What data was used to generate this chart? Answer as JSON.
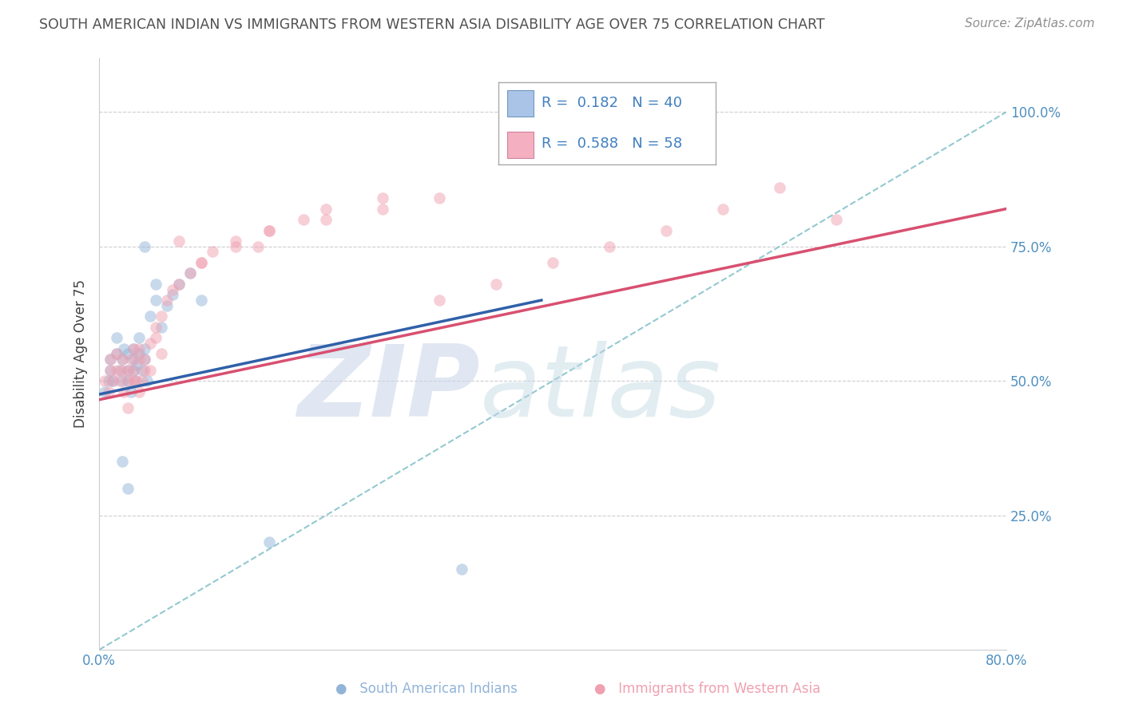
{
  "title": "SOUTH AMERICAN INDIAN VS IMMIGRANTS FROM WESTERN ASIA DISABILITY AGE OVER 75 CORRELATION CHART",
  "source": "Source: ZipAtlas.com",
  "ylabel": "Disability Age Over 75",
  "blue_color": "#92b4d8",
  "pink_color": "#f0a0b0",
  "blue_line_color": "#3060a8",
  "pink_line_color": "#d85070",
  "dashed_line_color": "#80c0c8",
  "background_color": "#ffffff",
  "grid_color": "#c8c8d0",
  "watermark_zip_color": "#c8d4e8",
  "watermark_atlas_color": "#c0d8e4",
  "title_color": "#505050",
  "source_color": "#909090",
  "axis_tick_color": "#5090c0",
  "legend_text_color": "#4080c0",
  "xlim": [
    0.0,
    0.8
  ],
  "ylim": [
    0.0,
    1.1
  ],
  "marker_size": 110,
  "marker_alpha": 0.5,
  "blue_x": [
    0.005,
    0.008,
    0.01,
    0.01,
    0.012,
    0.015,
    0.015,
    0.018,
    0.02,
    0.02,
    0.022,
    0.025,
    0.025,
    0.025,
    0.028,
    0.03,
    0.03,
    0.03,
    0.032,
    0.033,
    0.035,
    0.035,
    0.038,
    0.04,
    0.04,
    0.042,
    0.045,
    0.05,
    0.05,
    0.055,
    0.06,
    0.065,
    0.07,
    0.08,
    0.09,
    0.02,
    0.025,
    0.15,
    0.32,
    0.04
  ],
  "blue_y": [
    0.48,
    0.5,
    0.52,
    0.54,
    0.5,
    0.55,
    0.58,
    0.52,
    0.5,
    0.54,
    0.56,
    0.5,
    0.52,
    0.55,
    0.48,
    0.52,
    0.54,
    0.56,
    0.5,
    0.53,
    0.55,
    0.58,
    0.52,
    0.54,
    0.56,
    0.5,
    0.62,
    0.65,
    0.68,
    0.6,
    0.64,
    0.66,
    0.68,
    0.7,
    0.65,
    0.35,
    0.3,
    0.2,
    0.15,
    0.75
  ],
  "pink_x": [
    0.005,
    0.008,
    0.01,
    0.01,
    0.012,
    0.015,
    0.015,
    0.018,
    0.02,
    0.02,
    0.022,
    0.025,
    0.025,
    0.028,
    0.03,
    0.03,
    0.03,
    0.032,
    0.035,
    0.035,
    0.038,
    0.04,
    0.04,
    0.045,
    0.05,
    0.05,
    0.055,
    0.06,
    0.065,
    0.07,
    0.08,
    0.09,
    0.1,
    0.12,
    0.14,
    0.15,
    0.18,
    0.2,
    0.25,
    0.3,
    0.025,
    0.035,
    0.045,
    0.055,
    0.07,
    0.09,
    0.12,
    0.15,
    0.2,
    0.25,
    0.3,
    0.35,
    0.4,
    0.45,
    0.5,
    0.55,
    0.6,
    0.65
  ],
  "pink_y": [
    0.5,
    0.48,
    0.52,
    0.54,
    0.5,
    0.52,
    0.55,
    0.5,
    0.52,
    0.54,
    0.48,
    0.5,
    0.52,
    0.54,
    0.5,
    0.52,
    0.56,
    0.5,
    0.54,
    0.56,
    0.5,
    0.52,
    0.54,
    0.57,
    0.58,
    0.6,
    0.62,
    0.65,
    0.67,
    0.68,
    0.7,
    0.72,
    0.74,
    0.76,
    0.75,
    0.78,
    0.8,
    0.8,
    0.82,
    0.84,
    0.45,
    0.48,
    0.52,
    0.55,
    0.76,
    0.72,
    0.75,
    0.78,
    0.82,
    0.84,
    0.65,
    0.68,
    0.72,
    0.75,
    0.78,
    0.82,
    0.86,
    0.8
  ],
  "blue_line_x0": 0.0,
  "blue_line_x1": 0.39,
  "blue_line_y0": 0.475,
  "blue_line_y1": 0.65,
  "pink_line_x0": 0.0,
  "pink_line_x1": 0.8,
  "pink_line_y0": 0.465,
  "pink_line_y1": 0.82,
  "dash_line_x0": 0.0,
  "dash_line_x1": 0.8,
  "dash_line_y0": 0.0,
  "dash_line_y1": 1.0
}
